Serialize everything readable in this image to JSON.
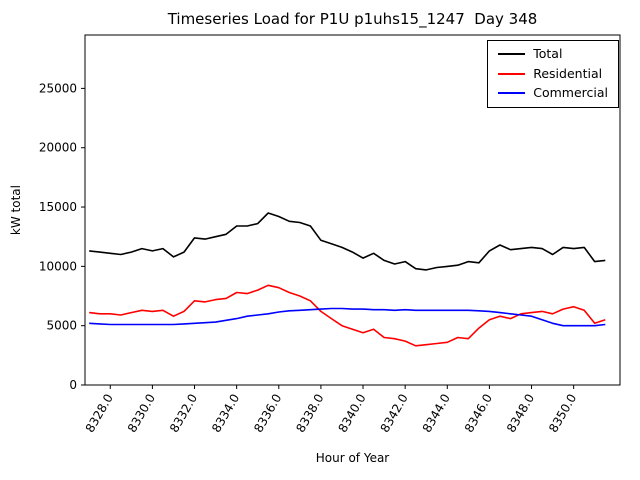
{
  "title": "Timeseries Load for P1U p1uhs15_1247  Day 348",
  "chart_data": {
    "type": "line",
    "title": "Timeseries Load for P1U p1uhs15_1247  Day 348",
    "xlabel": "Hour of Year",
    "ylabel": "kW total",
    "xlim": [
      8326.8,
      8352.2
    ],
    "ylim": [
      0,
      29500
    ],
    "grid": false,
    "legend_position": "upper right",
    "xtick_values": [
      8328,
      8330,
      8332,
      8334,
      8336,
      8338,
      8340,
      8342,
      8344,
      8346,
      8348,
      8350
    ],
    "xtick_labels": [
      "8328.0",
      "8330.0",
      "8332.0",
      "8334.0",
      "8336.0",
      "8338.0",
      "8340.0",
      "8342.0",
      "8344.0",
      "8346.0",
      "8348.0",
      "8350.0"
    ],
    "ytick_values": [
      0,
      5000,
      10000,
      15000,
      20000,
      25000
    ],
    "ytick_labels": [
      "0",
      "5000",
      "10000",
      "15000",
      "20000",
      "25000"
    ],
    "x": [
      8327.0,
      8327.5,
      8328.0,
      8328.5,
      8329.0,
      8329.5,
      8330.0,
      8330.5,
      8331.0,
      8331.5,
      8332.0,
      8332.5,
      8333.0,
      8333.5,
      8334.0,
      8334.5,
      8335.0,
      8335.5,
      8336.0,
      8336.5,
      8337.0,
      8337.5,
      8338.0,
      8338.5,
      8339.0,
      8339.5,
      8340.0,
      8340.5,
      8341.0,
      8341.5,
      8342.0,
      8342.5,
      8343.0,
      8343.5,
      8344.0,
      8344.5,
      8345.0,
      8345.5,
      8346.0,
      8346.5,
      8347.0,
      8347.5,
      8348.0,
      8348.5,
      8349.0,
      8349.5,
      8350.0,
      8350.5,
      8351.0,
      8351.5
    ],
    "series": [
      {
        "name": "Total",
        "color": "#000000",
        "values": [
          11300,
          11200,
          11100,
          11000,
          11200,
          11500,
          11300,
          11500,
          10800,
          11200,
          12400,
          12300,
          12500,
          12700,
          13400,
          13400,
          13600,
          14500,
          14200,
          13800,
          13700,
          13400,
          12200,
          11900,
          11600,
          11200,
          10700,
          11100,
          10500,
          10200,
          10400,
          9800,
          9700,
          9900,
          10000,
          10100,
          10400,
          10300,
          11300,
          11800,
          11400,
          11500,
          11600,
          11500,
          11000,
          11600,
          11500,
          11600,
          10400,
          10500
        ]
      },
      {
        "name": "Residential",
        "color": "#ff0000",
        "values": [
          6100,
          6000,
          6000,
          5900,
          6100,
          6300,
          6200,
          6300,
          5800,
          6200,
          7100,
          7000,
          7200,
          7300,
          7800,
          7700,
          8000,
          8400,
          8200,
          7800,
          7500,
          7100,
          6200,
          5600,
          5000,
          4700,
          4400,
          4700,
          4000,
          3900,
          3700,
          3300,
          3400,
          3500,
          3600,
          4000,
          3900,
          4800,
          5500,
          5800,
          5600,
          6000,
          6100,
          6200,
          6000,
          6400,
          6600,
          6300,
          5200,
          5500
        ]
      },
      {
        "name": "Commercial",
        "color": "#0000ff",
        "values": [
          5200,
          5150,
          5100,
          5100,
          5100,
          5100,
          5100,
          5100,
          5100,
          5150,
          5200,
          5250,
          5300,
          5450,
          5600,
          5800,
          5900,
          6000,
          6150,
          6250,
          6300,
          6350,
          6400,
          6450,
          6450,
          6400,
          6400,
          6350,
          6350,
          6300,
          6350,
          6300,
          6300,
          6300,
          6300,
          6300,
          6300,
          6250,
          6200,
          6100,
          6000,
          5900,
          5800,
          5500,
          5200,
          5000,
          5000,
          5000,
          5000,
          5100
        ]
      }
    ]
  }
}
